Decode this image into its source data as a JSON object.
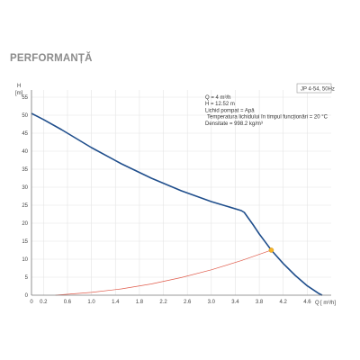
{
  "page": {
    "heading": "PERFORMANȚĂ"
  },
  "chart_data": {
    "type": "line",
    "title": "",
    "ylabel_top": "H",
    "ylabel_unit": "[m]",
    "xlabel": "Q",
    "xlabel_unit": "[ m³/h]",
    "xlim": [
      0,
      5.0
    ],
    "ylim": [
      0,
      57
    ],
    "x_ticks": [
      0,
      0.2,
      0.6,
      1.0,
      1.4,
      1.8,
      2.2,
      2.6,
      3.0,
      3.4,
      3.8,
      4.2,
      4.6
    ],
    "x_tick_labels": [
      "0",
      "0.2",
      "0.6",
      "1.0",
      "1.4",
      "1.8",
      "2.2",
      "2.6",
      "3.0",
      "3.4",
      "3.8",
      "4.2",
      "4.6"
    ],
    "y_ticks": [
      0,
      5,
      10,
      15,
      20,
      25,
      30,
      35,
      40,
      45,
      50,
      55
    ],
    "grid": true,
    "legend_box": "JP 4-54, 50Hz",
    "info_lines": [
      "Q = 4  m³/h",
      "H = 12.52 m",
      "Lichid pompat = Apă",
      "Temperatura lichidului în timpul funcționări = 20  °C",
      "Densitate = 998.2 kg/m³"
    ],
    "series": [
      {
        "color": "#1f4e8c",
        "x": [
          0,
          0.2,
          0.5,
          1.0,
          1.5,
          2.0,
          2.5,
          3.0,
          3.5,
          3.55,
          3.7,
          3.8,
          3.9,
          4.0,
          4.2,
          4.4,
          4.6,
          4.8,
          4.85
        ],
        "y": [
          50.5,
          48.8,
          46.0,
          41.0,
          36.5,
          32.5,
          29.0,
          26.0,
          23.5,
          23.0,
          19.5,
          17.0,
          14.8,
          12.52,
          8.8,
          5.5,
          2.6,
          0.4,
          0
        ]
      },
      {
        "color": "#e05a4a",
        "x": [
          0.4,
          1.0,
          1.5,
          2.0,
          2.5,
          3.0,
          3.5,
          4.0
        ],
        "y": [
          0,
          0.78,
          1.76,
          3.13,
          4.89,
          7.04,
          9.59,
          12.52
        ]
      }
    ],
    "duty_point": {
      "x": 4.0,
      "y": 12.52,
      "color": "#f5b325"
    }
  }
}
